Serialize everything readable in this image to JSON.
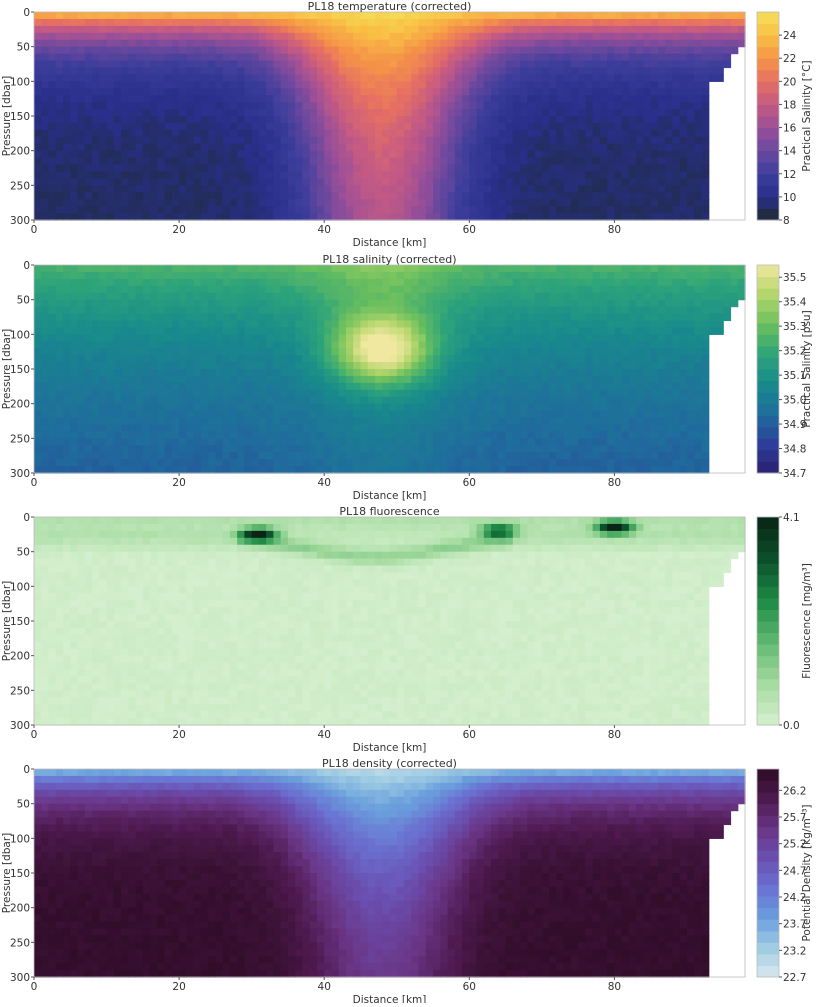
{
  "chart_data": [
    {
      "type": "heatmap",
      "title": "PL18 temperature (corrected)",
      "xlabel": "Distance [km]",
      "ylabel": "Pressure [dbar]",
      "colorbar_label": "Practical Salinity [°C]",
      "xlim": [
        0,
        98
      ],
      "ylim": [
        300,
        0
      ],
      "y_inverted": true,
      "xticks": [
        "0",
        "20",
        "40",
        "60",
        "80"
      ],
      "yticks": [
        "0",
        "50",
        "100",
        "150",
        "200",
        "250",
        "300"
      ],
      "colorbar_ticks": [
        "8",
        "10",
        "12",
        "14",
        "16",
        "18",
        "20",
        "22",
        "24"
      ],
      "vmin": 8,
      "vmax": 26,
      "colormap": [
        "#1c2b2a",
        "#2a2f8c",
        "#3d3e9c",
        "#6a489e",
        "#9a4f98",
        "#c45a84",
        "#e56f63",
        "#f59447",
        "#f9bf44",
        "#f4e25c"
      ],
      "profile": {
        "surface_value": 24.5,
        "deep_value": 9.2,
        "core_x_km": 48,
        "core_surface_value": 25.6,
        "core_deep_value": 15.5
      }
    },
    {
      "type": "heatmap",
      "title": "PL18 salinity (corrected)",
      "xlabel": "Distance [km]",
      "ylabel": "Pressure [dbar]",
      "colorbar_label": "Practical Salinity [psu]",
      "xlim": [
        0,
        98
      ],
      "ylim": [
        300,
        0
      ],
      "y_inverted": true,
      "xticks": [
        "0",
        "20",
        "40",
        "60",
        "80"
      ],
      "yticks": [
        "0",
        "50",
        "100",
        "150",
        "200",
        "250",
        "300"
      ],
      "colorbar_ticks": [
        "34.7",
        "34.8",
        "34.9",
        "35.0",
        "35.1",
        "35.2",
        "35.3",
        "35.4",
        "35.5"
      ],
      "vmin": 34.7,
      "vmax": 35.55,
      "colormap": [
        "#2a1f6e",
        "#2c3f9a",
        "#1f6e9c",
        "#188a8c",
        "#2ea47a",
        "#6abf5e",
        "#b3d56a",
        "#f0e8a0"
      ],
      "profile": {
        "surface_value": 35.25,
        "deep_value": 34.85,
        "core_x_km": 48,
        "core_depth_dbar": 120,
        "core_value": 35.52
      }
    },
    {
      "type": "heatmap",
      "title": "PL18 fluorescence",
      "xlabel": "Distance [km]",
      "ylabel": "Pressure [dbar]",
      "colorbar_label": "Fluorescence [mg/m³]",
      "xlim": [
        0,
        98
      ],
      "ylim": [
        300,
        0
      ],
      "y_inverted": true,
      "xticks": [
        "0",
        "20",
        "40",
        "60",
        "80"
      ],
      "yticks": [
        "0",
        "50",
        "100",
        "150",
        "200",
        "250",
        "300"
      ],
      "colorbar_ticks": [
        "0.0",
        "4.1"
      ],
      "vmin": 0,
      "vmax": 4.1,
      "colormap": [
        "#d6f0cf",
        "#a5dba0",
        "#5fb870",
        "#1e8a46",
        "#0b4f2a",
        "#0a2416"
      ],
      "profile": {
        "background_value": 0.1,
        "chlorophyll_maximum": [
          {
            "x_km": 31,
            "depth_dbar": 25,
            "value": 3.8
          },
          {
            "x_km": 64,
            "depth_dbar": 20,
            "value": 2.8
          },
          {
            "x_km": 80,
            "depth_dbar": 15,
            "value": 4.0
          }
        ]
      }
    },
    {
      "type": "heatmap",
      "title": "PL18 density (corrected)",
      "xlabel": "Distance [km]",
      "ylabel": "Pressure [dbar]",
      "colorbar_label": "Potential Density [kg/m⁻³]",
      "xlim": [
        0,
        98
      ],
      "ylim": [
        300,
        0
      ],
      "y_inverted": true,
      "xticks": [
        "0",
        "20",
        "40",
        "60",
        "80"
      ],
      "yticks": [
        "0",
        "50",
        "100",
        "150",
        "200",
        "250",
        "300"
      ],
      "colorbar_ticks": [
        "22.7",
        "23.2",
        "23.7",
        "24.2",
        "24.7",
        "25.2",
        "25.7",
        "26.2"
      ],
      "vmin": 22.7,
      "vmax": 26.6,
      "colormap": [
        "#dbe8ef",
        "#9fcce3",
        "#6a9fdc",
        "#6a72d2",
        "#6a4fb0",
        "#6a3585",
        "#4e1a4f",
        "#2e0c25"
      ],
      "profile": {
        "surface_value": 23.4,
        "deep_value": 26.5,
        "core_x_km": 48,
        "core_surface_value": 23.0,
        "core_deep_value": 25.9
      }
    }
  ]
}
